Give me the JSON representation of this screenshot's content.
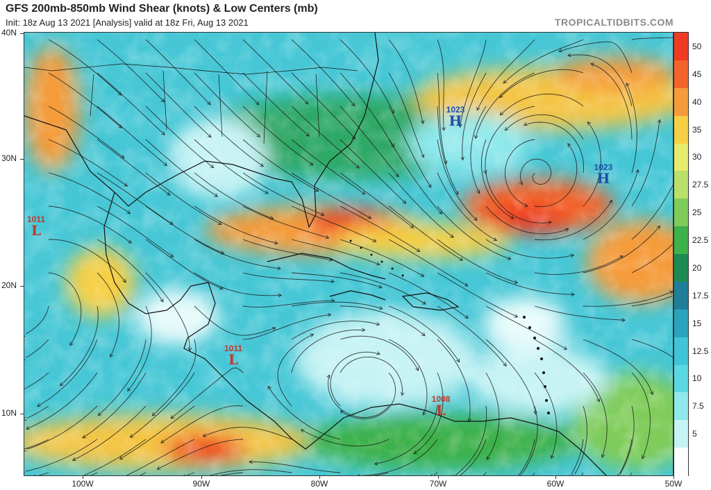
{
  "header": {
    "title": "GFS 200mb-850mb Wind Shear (knots) & Low Centers (mb)",
    "subtitle": "Init: 18z Aug 13 2021   [Analysis]   valid at 18z Fri, Aug 13 2021",
    "credit": "TROPICALTIDBITS.COM"
  },
  "map": {
    "lat_ticks": [
      "40N",
      "30N",
      "20N",
      "10N"
    ],
    "lon_ticks": [
      "100W",
      "90W",
      "80W",
      "70W",
      "60W",
      "50W"
    ],
    "pressure_centers": [
      {
        "type": "L",
        "pressure": "1011",
        "color": "#c0392b"
      },
      {
        "type": "L",
        "pressure": "1011",
        "color": "#c0392b"
      },
      {
        "type": "L",
        "pressure": "1008",
        "color": "#c0392b"
      },
      {
        "type": "H",
        "pressure": "1023",
        "color": "#1f4fa8"
      },
      {
        "type": "H",
        "pressure": "1023",
        "color": "#1f4fa8"
      }
    ]
  },
  "colorbar": {
    "labels": [
      "50",
      "45",
      "40",
      "35",
      "30",
      "27.5",
      "25",
      "22.5",
      "20",
      "17.5",
      "15",
      "12.5",
      "10",
      "7.5",
      "5"
    ],
    "colors": [
      "#ef3b24",
      "#f3632a",
      "#f59b3a",
      "#f7cf45",
      "#e5ec6b",
      "#b9e06a",
      "#7fcc5a",
      "#3db14a",
      "#1c8a52",
      "#1f7f9a",
      "#2aa4bd",
      "#3fc5d6",
      "#5ad9e3",
      "#8ee8ec",
      "#c6f3f4",
      "#ffffff"
    ]
  }
}
